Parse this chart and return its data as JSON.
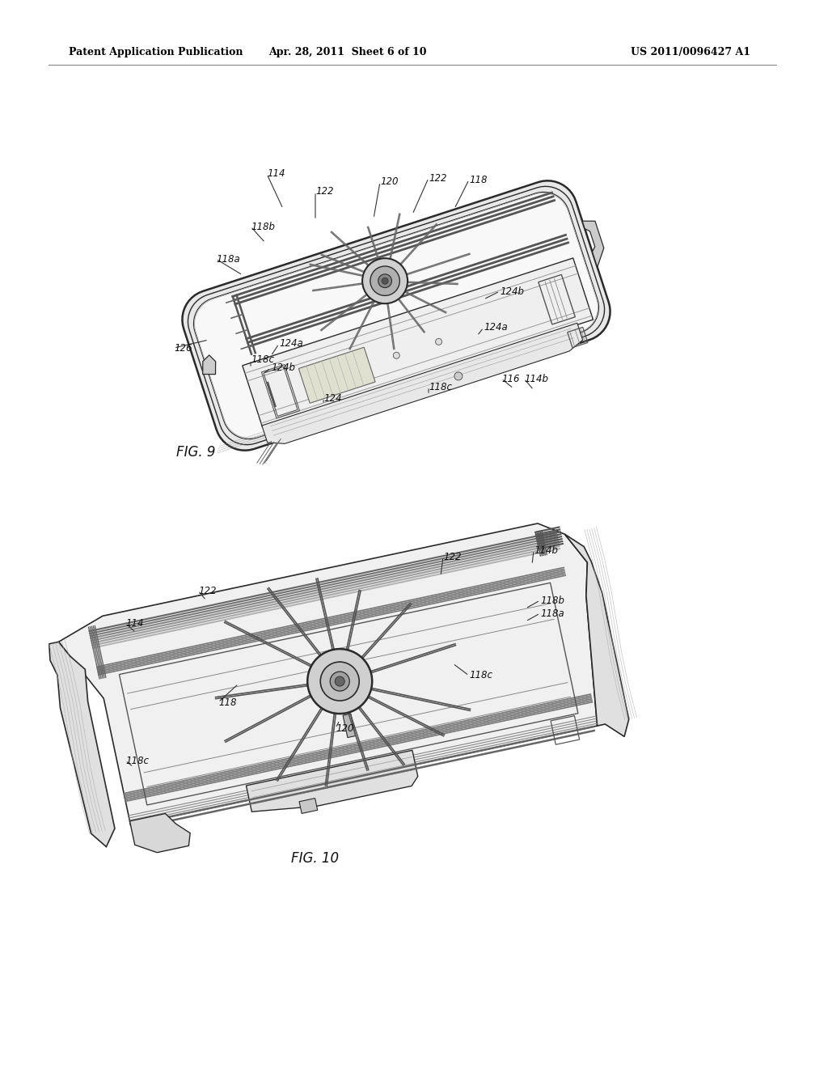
{
  "bg_color": "#ffffff",
  "header_left": "Patent Application Publication",
  "header_mid": "Apr. 28, 2011  Sheet 6 of 10",
  "header_right": "US 2011/0096427 A1",
  "fig9_label": "FIG. 9",
  "fig10_label": "FIG. 10",
  "line_color": "#2a2a2a",
  "light_gray": "#e8e8e8",
  "mid_gray": "#cccccc",
  "dark_gray": "#999999"
}
